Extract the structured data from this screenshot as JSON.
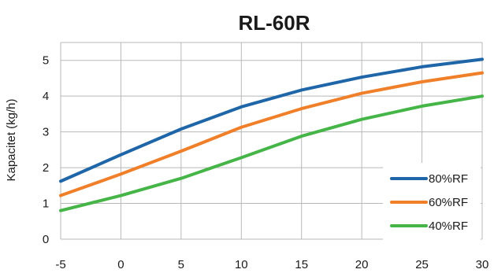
{
  "chart_data": {
    "type": "line",
    "title": "RL-60R",
    "xlabel": "",
    "ylabel": "Kapacitet (kg/h)",
    "x": [
      -5,
      0,
      5,
      10,
      15,
      20,
      25,
      30
    ],
    "xlim": [
      -5,
      30
    ],
    "ylim": [
      0,
      5.5
    ],
    "xticks": [
      -5,
      0,
      5,
      10,
      15,
      20,
      25,
      30
    ],
    "yticks": [
      0,
      1,
      2,
      3,
      4,
      5
    ],
    "grid": true,
    "legend_position": "bottom-right",
    "series": [
      {
        "name": "80%RF",
        "color": "#1f66a8",
        "values": [
          1.62,
          2.36,
          3.08,
          3.7,
          4.17,
          4.53,
          4.82,
          5.03
        ]
      },
      {
        "name": "60%RF",
        "color": "#f07f2a",
        "values": [
          1.22,
          1.82,
          2.46,
          3.13,
          3.65,
          4.08,
          4.4,
          4.65
        ]
      },
      {
        "name": "40%RF",
        "color": "#46b548",
        "values": [
          0.8,
          1.22,
          1.7,
          2.28,
          2.88,
          3.35,
          3.72,
          4.0
        ]
      }
    ]
  }
}
